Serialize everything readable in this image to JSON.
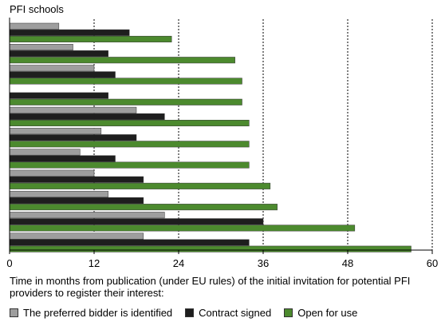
{
  "chart_data": {
    "type": "bar",
    "orientation": "horizontal",
    "title": "PFI schools",
    "xlabel": "Time in months from publication (under EU rules) of the initial invitation for potential PFI providers to register their interest:",
    "ylabel": "",
    "xlim": [
      0,
      60
    ],
    "xticks": [
      "0",
      "12",
      "24",
      "36",
      "48",
      "60"
    ],
    "grid": true,
    "legend_position": "bottom",
    "categories": [
      "",
      "",
      "",
      "",
      "",
      "",
      "",
      "",
      "",
      "",
      ""
    ],
    "series": [
      {
        "name": "The preferred bidder is identified",
        "color": "#9e9e9e",
        "values": [
          7,
          9,
          12,
          null,
          18,
          13,
          10,
          12,
          14,
          22,
          19
        ]
      },
      {
        "name": "Contract signed",
        "color": "#1e1e1e",
        "values": [
          17,
          14,
          15,
          14,
          22,
          18,
          15,
          19,
          19,
          36,
          34
        ]
      },
      {
        "name": "Open for use",
        "color": "#4c8a2e",
        "values": [
          23,
          32,
          33,
          33,
          34,
          34,
          34,
          37,
          38,
          49,
          57
        ]
      }
    ]
  }
}
